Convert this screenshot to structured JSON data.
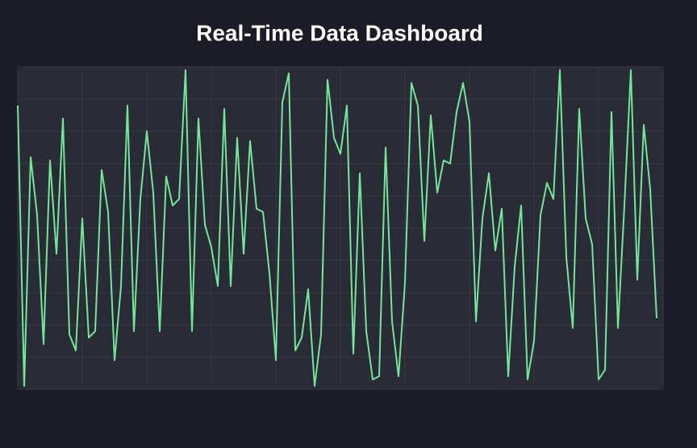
{
  "chart_data": {
    "type": "line",
    "title": "Real-Time Data Dashboard",
    "x": [
      0,
      1,
      2,
      3,
      4,
      5,
      6,
      7,
      8,
      9,
      10,
      11,
      12,
      13,
      14,
      15,
      16,
      17,
      18,
      19,
      20,
      21,
      22,
      23,
      24,
      25,
      26,
      27,
      28,
      29,
      30,
      31,
      32,
      33,
      34,
      35,
      36,
      37,
      38,
      39,
      40,
      41,
      42,
      43,
      44,
      45,
      46,
      47,
      48,
      49,
      50,
      51,
      52,
      53,
      54,
      55,
      56,
      57,
      58,
      59,
      60,
      61,
      62,
      63,
      64,
      65,
      66,
      67,
      68,
      69,
      70,
      71,
      72,
      73,
      74,
      75,
      76,
      77,
      78,
      79,
      80,
      81,
      82,
      83,
      84,
      85,
      86,
      87,
      88,
      89,
      90,
      91,
      92,
      93,
      94,
      95,
      96,
      97,
      98,
      99
    ],
    "values": [
      88,
      1,
      72,
      54,
      14,
      71,
      42,
      84,
      17,
      12,
      53,
      16,
      18,
      68,
      55,
      9,
      32,
      88,
      18,
      59,
      80,
      61,
      18,
      66,
      57,
      59,
      99,
      18,
      84,
      51,
      44,
      32,
      87,
      32,
      78,
      42,
      77,
      56,
      55,
      36,
      9,
      89,
      98,
      12,
      16,
      31,
      1,
      17,
      96,
      78,
      73,
      88,
      11,
      67,
      18,
      3,
      4,
      75,
      21,
      4,
      33,
      95,
      88,
      46,
      85,
      61,
      71,
      70,
      86,
      95,
      83,
      21,
      53,
      67,
      43,
      56,
      4,
      38,
      57,
      3,
      15,
      54,
      64,
      59,
      99,
      41,
      19,
      87,
      53,
      45,
      3,
      6,
      86,
      19,
      57,
      99,
      34,
      82,
      62,
      22
    ],
    "color": "#6fe89a",
    "xlim": [
      0,
      100
    ],
    "xticks": [
      0,
      10,
      20,
      30,
      40,
      50,
      60,
      70,
      80,
      90,
      100
    ],
    "ylim": [
      0,
      100
    ],
    "yticks": [
      0,
      10,
      20,
      30,
      40,
      50,
      60,
      70,
      80,
      90,
      100
    ],
    "grid": true
  }
}
